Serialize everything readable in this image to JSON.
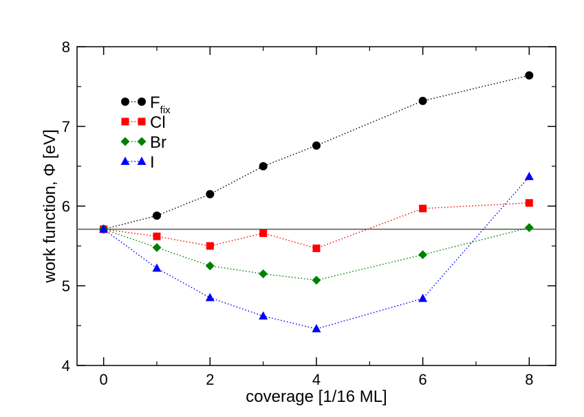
{
  "chart_data": {
    "type": "scatter",
    "xlabel": "coverage [1/16 ML]",
    "ylabel": "work function, Φ [eV]",
    "xlim": [
      -0.5,
      8.5
    ],
    "ylim": [
      4,
      8
    ],
    "xticks": [
      0,
      2,
      4,
      6,
      8
    ],
    "yticks": [
      4,
      5,
      6,
      7,
      8
    ],
    "xtick_labels": [
      "0",
      "2",
      "4",
      "6",
      "8"
    ],
    "ytick_labels": [
      "4",
      "5",
      "6",
      "7",
      "8"
    ],
    "grid": false,
    "legend_position": "upper-left",
    "reference_line": {
      "y": 5.71
    },
    "series": [
      {
        "name": "F",
        "name_subscript": "fix",
        "marker": "circle",
        "color": "#000000",
        "x": [
          0,
          1,
          2,
          3,
          4,
          6,
          8
        ],
        "y": [
          5.71,
          5.88,
          6.15,
          6.5,
          6.76,
          7.32,
          7.64
        ]
      },
      {
        "name": "Cl",
        "marker": "square",
        "color": "#ff0000",
        "x": [
          0,
          1,
          2,
          3,
          4,
          6,
          8
        ],
        "y": [
          5.71,
          5.62,
          5.5,
          5.66,
          5.47,
          5.97,
          6.04
        ]
      },
      {
        "name": "Br",
        "marker": "diamond",
        "color": "#008000",
        "x": [
          0,
          1,
          2,
          3,
          4,
          6,
          8
        ],
        "y": [
          5.71,
          5.48,
          5.25,
          5.15,
          5.07,
          5.39,
          5.73
        ]
      },
      {
        "name": "I",
        "marker": "triangle",
        "color": "#0000ff",
        "x": [
          0,
          1,
          2,
          3,
          4,
          6,
          8
        ],
        "y": [
          5.71,
          5.22,
          4.85,
          4.62,
          4.46,
          4.84,
          6.37
        ]
      }
    ]
  }
}
